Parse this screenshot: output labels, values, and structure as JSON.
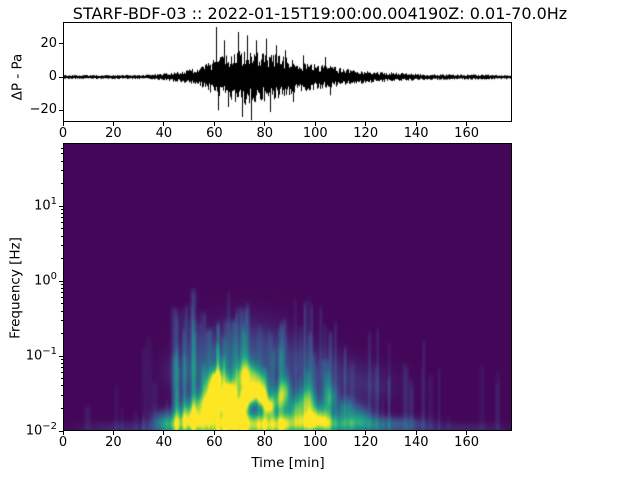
{
  "figure": {
    "title": "STARF-BDF-03 :: 2022-01-15T19:00:00.004190Z: 0.01-70.0Hz",
    "background": "#ffffff",
    "text_color": "#000000"
  },
  "chart_data": [
    {
      "type": "line",
      "name": "waveform",
      "ylabel": "ΔP - Pa",
      "xlim": [
        0,
        178
      ],
      "ylim": [
        -27,
        33
      ],
      "xticks": [
        0,
        20,
        40,
        60,
        80,
        100,
        120,
        140,
        160
      ],
      "yticks": [
        {
          "v": -20,
          "label": "−20"
        },
        {
          "v": 0,
          "label": "0"
        },
        {
          "v": 20,
          "label": "20"
        }
      ],
      "line_color": "#000000",
      "envelope": {
        "t": [
          0,
          30,
          38,
          42,
          46,
          50,
          54,
          57,
          60,
          64,
          68,
          72,
          76,
          80,
          84,
          88,
          92,
          96,
          100,
          105,
          110,
          116,
          122,
          130,
          140,
          155,
          178
        ],
        "amp": [
          1.2,
          1.3,
          1.8,
          2.8,
          3.5,
          4.5,
          6,
          8,
          11,
          13,
          15,
          17,
          16,
          15,
          14,
          12,
          10,
          9,
          8,
          7,
          5.5,
          4.5,
          3.5,
          2.8,
          2.0,
          1.6,
          1.4
        ]
      },
      "spikes": [
        {
          "t": 60.5,
          "a": 30
        },
        {
          "t": 61.5,
          "a": -20
        },
        {
          "t": 64,
          "a": 22
        },
        {
          "t": 65.5,
          "a": -18
        },
        {
          "t": 69.5,
          "a": 27
        },
        {
          "t": 71,
          "a": -24
        },
        {
          "t": 73,
          "a": 25
        },
        {
          "t": 74.5,
          "a": -26
        },
        {
          "t": 76.5,
          "a": 22
        },
        {
          "t": 80.5,
          "a": 23
        },
        {
          "t": 82,
          "a": -21
        },
        {
          "t": 84.5,
          "a": 19
        },
        {
          "t": 88,
          "a": 16
        },
        {
          "t": 91,
          "a": -15
        },
        {
          "t": 95,
          "a": 13
        },
        {
          "t": 104,
          "a": 12
        },
        {
          "t": 106,
          "a": -11
        }
      ]
    },
    {
      "type": "heatmap",
      "name": "spectrogram",
      "xlabel": "Time  [min]",
      "ylabel": "Frequency [Hz]",
      "xlim": [
        0,
        178
      ],
      "flim": [
        0.01,
        70
      ],
      "yscale": "log",
      "xticks": [
        0,
        20,
        40,
        60,
        80,
        100,
        120,
        140,
        160
      ],
      "ytick_exponents": [
        -2,
        -1,
        0,
        1
      ],
      "colormap": "viridis",
      "colormap_stops": [
        "#440154",
        "#414487",
        "#2a788e",
        "#22a884",
        "#7ad151",
        "#fde725"
      ],
      "base_value": 0.015,
      "seed": 42,
      "blobs": [
        [
          25,
          0.011,
          12,
          0.06,
          0.1
        ],
        [
          40,
          0.013,
          3,
          0.1,
          0.3
        ],
        [
          45,
          0.012,
          5,
          0.1,
          0.32
        ],
        [
          52,
          0.013,
          5,
          0.1,
          0.35
        ],
        [
          60,
          0.012,
          7,
          0.12,
          0.45
        ],
        [
          68,
          0.013,
          6,
          0.12,
          0.45
        ],
        [
          75,
          0.012,
          7,
          0.12,
          0.45
        ],
        [
          83,
          0.012,
          6,
          0.1,
          0.4
        ],
        [
          90,
          0.012,
          6,
          0.1,
          0.38
        ],
        [
          100,
          0.013,
          7,
          0.1,
          0.4
        ],
        [
          110,
          0.012,
          8,
          0.09,
          0.32
        ],
        [
          122,
          0.012,
          8,
          0.08,
          0.25
        ],
        [
          135,
          0.012,
          8,
          0.07,
          0.18
        ],
        [
          160,
          0.011,
          12,
          0.05,
          0.08
        ],
        [
          50,
          0.018,
          3,
          0.12,
          0.4
        ],
        [
          55,
          0.022,
          2.5,
          0.12,
          0.45
        ],
        [
          58,
          0.035,
          2,
          0.15,
          0.55
        ],
        [
          62,
          0.05,
          2,
          0.12,
          0.45
        ],
        [
          65,
          0.03,
          2.5,
          0.12,
          0.5
        ],
        [
          70,
          0.045,
          2.5,
          0.15,
          0.5
        ],
        [
          73,
          0.06,
          2,
          0.12,
          0.35
        ],
        [
          76,
          0.05,
          2,
          0.12,
          0.45
        ],
        [
          79,
          0.04,
          2,
          0.12,
          0.45
        ],
        [
          85,
          0.025,
          2.5,
          0.12,
          0.5
        ],
        [
          88,
          0.035,
          2,
          0.12,
          0.45
        ],
        [
          92,
          0.02,
          2.5,
          0.12,
          0.45
        ],
        [
          97,
          0.025,
          2.5,
          0.15,
          0.5
        ],
        [
          101,
          0.016,
          3,
          0.12,
          0.45
        ],
        [
          106,
          0.028,
          2,
          0.12,
          0.35
        ],
        [
          112,
          0.02,
          3,
          0.1,
          0.3
        ],
        [
          118,
          0.016,
          3,
          0.1,
          0.28
        ],
        [
          59,
          0.022,
          1.6,
          0.1,
          0.95
        ],
        [
          60.5,
          0.042,
          1.2,
          0.1,
          0.75
        ],
        [
          63,
          0.024,
          1.6,
          0.09,
          0.9
        ],
        [
          66.5,
          0.031,
          1.5,
          0.09,
          0.8
        ],
        [
          69,
          0.019,
          1.8,
          0.09,
          1.0
        ],
        [
          72,
          0.026,
          1.5,
          0.09,
          0.85
        ],
        [
          75,
          0.031,
          1.5,
          0.1,
          0.9
        ],
        [
          79,
          0.028,
          1.5,
          0.09,
          0.85
        ],
        [
          81.5,
          0.021,
          1.4,
          0.08,
          0.7
        ],
        [
          65,
          0.09,
          9,
          0.28,
          0.14
        ],
        [
          75,
          0.12,
          10,
          0.3,
          0.12
        ],
        [
          88,
          0.08,
          9,
          0.25,
          0.12
        ],
        [
          50,
          0.06,
          7,
          0.2,
          0.12
        ],
        [
          105,
          0.06,
          9,
          0.2,
          0.1
        ],
        [
          120,
          0.04,
          9,
          0.18,
          0.09
        ]
      ],
      "streak_groups": [
        {
          "count": 60,
          "t_range": [
            42,
            112
          ],
          "f_top_range": [
            0.05,
            0.7
          ],
          "v_range": [
            0.05,
            0.13
          ]
        },
        {
          "count": 30,
          "t_range": [
            30,
            145
          ],
          "f_top_range": [
            0.03,
            0.3
          ],
          "v_range": [
            0.04,
            0.09
          ]
        },
        {
          "count": 35,
          "t_range": [
            0,
            178
          ],
          "f_top_range": [
            0.012,
            0.08
          ],
          "v_range": [
            0.03,
            0.07
          ]
        }
      ]
    }
  ]
}
